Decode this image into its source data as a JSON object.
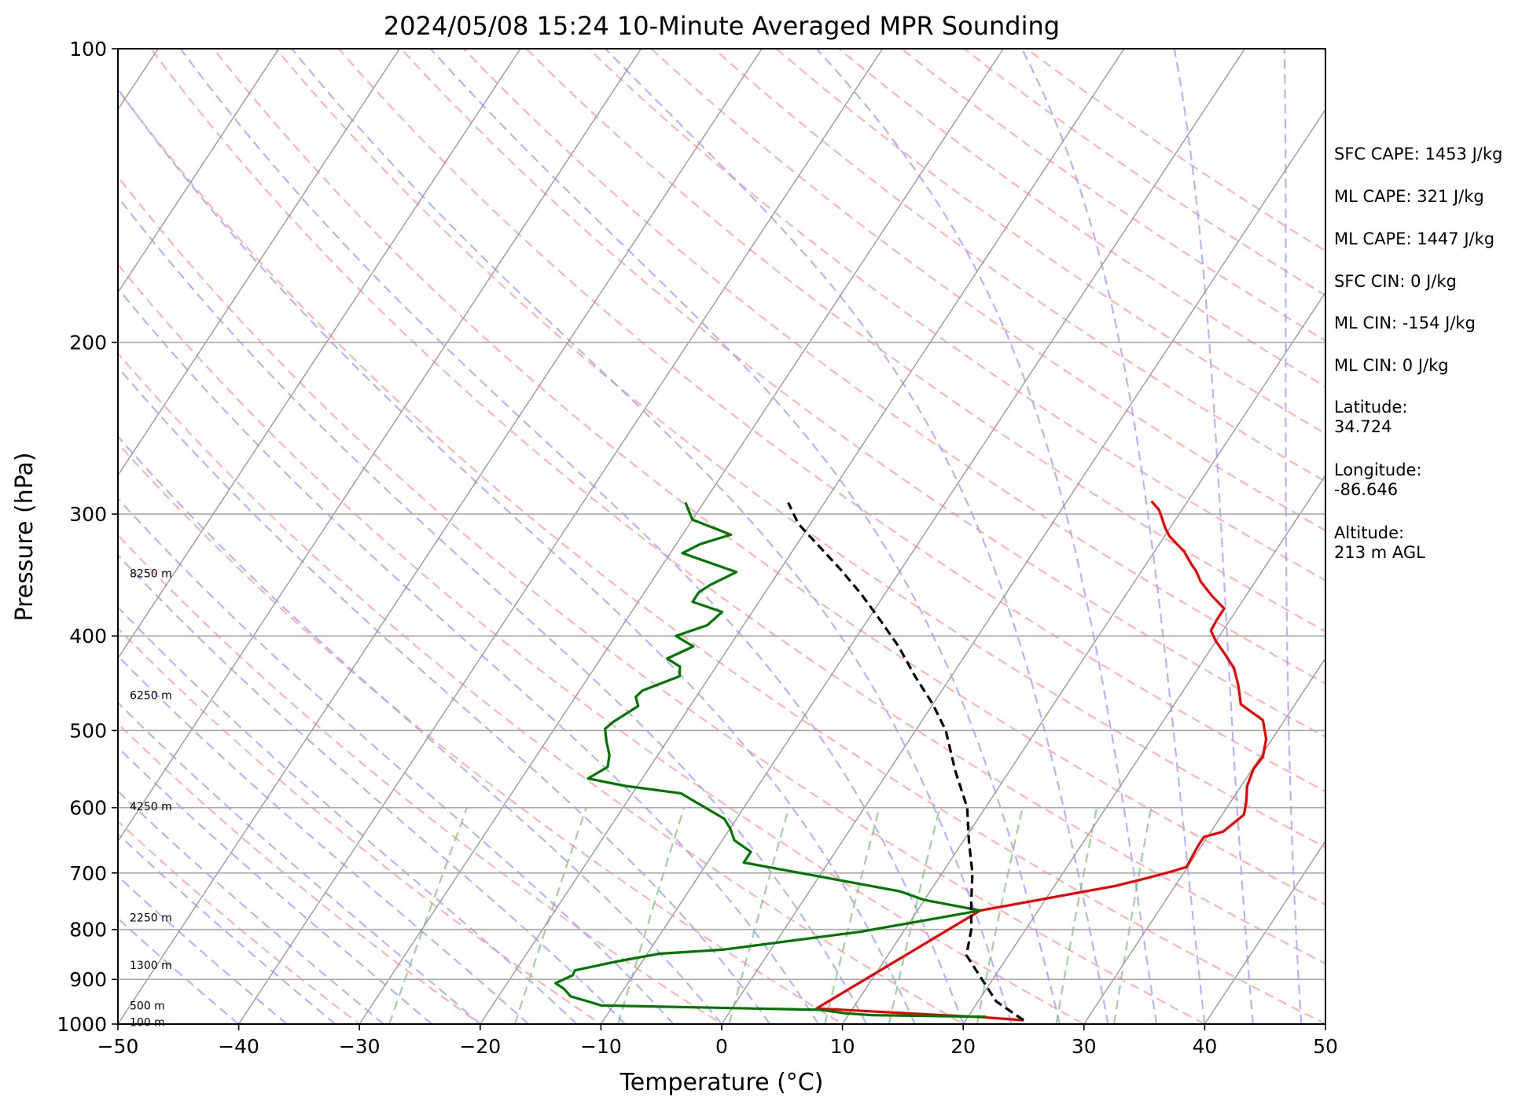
{
  "chart_data": {
    "type": "line",
    "title": "2024/05/08 15:24 10-Minute Averaged MPR Sounding",
    "xlabel": "Temperature (°C)",
    "ylabel": "Pressure (hPa)",
    "xlim": [
      -50,
      50
    ],
    "ylim": [
      1000,
      100
    ],
    "y_scale": "log",
    "grid": true,
    "x_ticks": [
      -50,
      -40,
      -30,
      -20,
      -10,
      0,
      10,
      20,
      30,
      40,
      50
    ],
    "x_tick_labels": [
      "−50",
      "−40",
      "−30",
      "−20",
      "−10",
      "0",
      "10",
      "20",
      "30",
      "40",
      "50"
    ],
    "y_ticks": [
      1000,
      900,
      800,
      700,
      600,
      500,
      400,
      300,
      200,
      100
    ],
    "y_tick_labels": [
      "1000",
      "900",
      "800",
      "700",
      "600",
      "500",
      "400",
      "300",
      "200",
      "100"
    ],
    "height_labels": [
      {
        "text": "8250 m",
        "pressure": 345
      },
      {
        "text": "6250 m",
        "pressure": 460
      },
      {
        "text": "4250 m",
        "pressure": 598
      },
      {
        "text": "2250 m",
        "pressure": 778
      },
      {
        "text": "1300 m",
        "pressure": 870
      },
      {
        "text": "500 m",
        "pressure": 957
      },
      {
        "text": "100 m",
        "pressure": 995
      }
    ],
    "series": [
      {
        "color": "#ee0000",
        "style": "solid",
        "points": [
          [
            24.8,
            991
          ],
          [
            21.2,
            984
          ],
          [
            7.0,
            964
          ],
          [
            15.2,
            765
          ],
          [
            25.0,
            722
          ],
          [
            27.0,
            710
          ],
          [
            29.0,
            697
          ],
          [
            29.9,
            690
          ],
          [
            29.7,
            655
          ],
          [
            29.7,
            643
          ],
          [
            31.0,
            635
          ],
          [
            31.8,
            610
          ],
          [
            31.3,
            592
          ],
          [
            30.5,
            570
          ],
          [
            30.1,
            548
          ],
          [
            30.2,
            532
          ],
          [
            29.5,
            510
          ],
          [
            28.2,
            488
          ],
          [
            25.5,
            470
          ],
          [
            24.3,
            450
          ],
          [
            23.0,
            432
          ],
          [
            21.5,
            418
          ],
          [
            20.0,
            405
          ],
          [
            19.0,
            395
          ],
          [
            18.9,
            385
          ],
          [
            18.9,
            375
          ],
          [
            17.2,
            364
          ],
          [
            15.5,
            352
          ],
          [
            14.5,
            343
          ],
          [
            13.8,
            338
          ],
          [
            12.5,
            328
          ],
          [
            10.4,
            316
          ],
          [
            9.6,
            310
          ],
          [
            8.7,
            302
          ],
          [
            8.1,
            297
          ],
          [
            7.0,
            291
          ]
        ]
      },
      {
        "color": "#007700",
        "style": "solid",
        "points": [
          [
            21.5,
            983
          ],
          [
            11.9,
            979
          ],
          [
            9.7,
            975
          ],
          [
            7.4,
            967
          ],
          [
            0.0,
            963
          ],
          [
            -11.0,
            957
          ],
          [
            -12.0,
            950
          ],
          [
            -14.0,
            937
          ],
          [
            -15.0,
            920
          ],
          [
            -16.0,
            908
          ],
          [
            -15.0,
            891
          ],
          [
            -15.1,
            881
          ],
          [
            -12.0,
            862
          ],
          [
            -9.0,
            847
          ],
          [
            -4.0,
            839
          ],
          [
            6.5,
            804
          ],
          [
            15.2,
            765
          ],
          [
            10.0,
            746
          ],
          [
            7.5,
            731
          ],
          [
            -7.0,
            683
          ],
          [
            -7.0,
            666
          ],
          [
            -9.0,
            648
          ],
          [
            -10.0,
            630
          ],
          [
            -11.0,
            616
          ],
          [
            -16.0,
            580
          ],
          [
            -21.0,
            570
          ],
          [
            -24.5,
            560
          ],
          [
            -23.5,
            545
          ],
          [
            -24.0,
            530
          ],
          [
            -25.0,
            513
          ],
          [
            -25.8,
            498
          ],
          [
            -25.5,
            490
          ],
          [
            -24.3,
            472
          ],
          [
            -25.0,
            462
          ],
          [
            -24.8,
            455
          ],
          [
            -22.5,
            440
          ],
          [
            -23.0,
            430
          ],
          [
            -24.5,
            422
          ],
          [
            -23.0,
            410
          ],
          [
            -25.0,
            400
          ],
          [
            -23.0,
            390
          ],
          [
            -22.5,
            378
          ],
          [
            -25.5,
            369
          ],
          [
            -25.5,
            361
          ],
          [
            -25.0,
            355
          ],
          [
            -23.5,
            344
          ],
          [
            -29.0,
            329
          ],
          [
            -28.0,
            322
          ],
          [
            -26.0,
            315
          ],
          [
            -30.0,
            304
          ],
          [
            -30.5,
            300
          ],
          [
            -31.5,
            292
          ]
        ]
      },
      {
        "color": "#000000",
        "style": "dashed",
        "points": [
          [
            24.8,
            991
          ],
          [
            21.5,
            948
          ],
          [
            16.5,
            850
          ],
          [
            15.5,
            800
          ],
          [
            14.0,
            750
          ],
          [
            12.5,
            700
          ],
          [
            10.5,
            650
          ],
          [
            8.5,
            600
          ],
          [
            5.5,
            550
          ],
          [
            2.5,
            500
          ],
          [
            0.0,
            470
          ],
          [
            -3.0,
            440
          ],
          [
            -6.0,
            410
          ],
          [
            -9.0,
            385
          ],
          [
            -12.0,
            362
          ],
          [
            -15.0,
            342
          ],
          [
            -18.0,
            324
          ],
          [
            -21.0,
            307
          ],
          [
            -23.0,
            292
          ]
        ]
      }
    ]
  },
  "info": {
    "lines": [
      "SFC CAPE: 1453 J/kg",
      "ML CAPE: 321 J/kg",
      "ML CAPE: 1447 J/kg",
      "SFC CIN: 0 J/kg",
      "ML CIN: -154 J/kg",
      "ML CIN: 0 J/kg",
      "Latitude:",
      "34.724",
      "Longitude:",
      "-86.646",
      "Altitude:",
      "213 m AGL"
    ]
  },
  "colors": {
    "dry_adiabat": "#ff9999",
    "moist_adiabat": "#9999ff",
    "mixing_ratio": "#77bb77",
    "isotherm": "#999999",
    "isobar": "#aaaaaa"
  }
}
